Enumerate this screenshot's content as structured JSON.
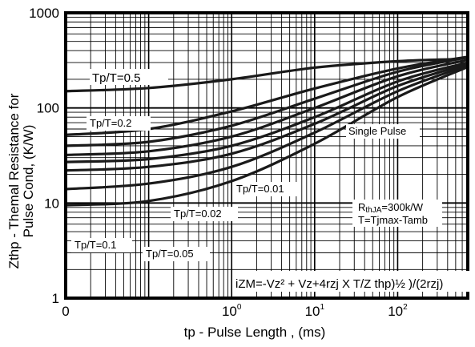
{
  "chart_data": {
    "type": "line",
    "xscale": "log",
    "yscale": "log",
    "xlim": [
      0.01,
      700
    ],
    "ylim": [
      1,
      1000
    ],
    "xlabel": "tp - Pulse Length , (ms)",
    "ylabel_line1": "Zthp - Themal Resistance for",
    "ylabel_line2": "Pulse Cond,  (K/W)",
    "x_ticks": [
      {
        "value": 0.01,
        "label": "0",
        "exp": ""
      },
      {
        "value": 1,
        "label": "10",
        "exp": "0"
      },
      {
        "value": 10,
        "label": "10",
        "exp": "1"
      },
      {
        "value": 100,
        "label": "10",
        "exp": "2"
      }
    ],
    "y_ticks": [
      {
        "value": 1,
        "label": "1"
      },
      {
        "value": 10,
        "label": "10"
      },
      {
        "value": 100,
        "label": "100"
      },
      {
        "value": 1000,
        "label": "1000"
      }
    ],
    "series": [
      {
        "name": "Tp/T=0.5",
        "x": [
          0.01,
          0.1,
          1,
          10,
          100,
          500
        ],
        "y": [
          150,
          162,
          200,
          265,
          310,
          325
        ]
      },
      {
        "name": "Tp/T=0.2",
        "x": [
          0.01,
          0.1,
          1,
          10,
          100,
          700
        ],
        "y": [
          52,
          60,
          92,
          160,
          260,
          345
        ]
      },
      {
        "name": "Tp/T=0.1",
        "x": [
          0.01,
          0.1,
          1,
          10,
          100,
          700
        ],
        "y": [
          40,
          44,
          65,
          125,
          240,
          340
        ]
      },
      {
        "name": "Tp/T=0.05",
        "x": [
          0.01,
          0.1,
          1,
          10,
          100,
          700
        ],
        "y": [
          32,
          35,
          50,
          100,
          215,
          320
        ]
      },
      {
        "name": "Tp/T=0.02",
        "x": [
          0.01,
          0.1,
          1,
          10,
          100,
          700
        ],
        "y": [
          27,
          29,
          40,
          80,
          190,
          300
        ]
      },
      {
        "name": "Tp/T=0.01",
        "x": [
          0.01,
          0.1,
          1,
          10,
          100,
          700
        ],
        "y": [
          22,
          24,
          33,
          68,
          170,
          290
        ]
      },
      {
        "name": "Single Pulse",
        "x": [
          0.01,
          0.1,
          1,
          10,
          100,
          700
        ],
        "y": [
          14,
          16,
          24,
          55,
          150,
          280
        ]
      },
      {
        "name": "",
        "x": [
          0.01,
          0.1,
          1,
          10,
          100,
          700
        ],
        "y": [
          9.5,
          10.5,
          17,
          42,
          130,
          270
        ]
      }
    ],
    "annotations": {
      "tp05": "Tp/T=0.5",
      "tp02": "Tp/T=0.2",
      "tp001": "Tp/T=0.01",
      "tp002": "Tp/T=0.02",
      "tp01": "Tp/T=0.1",
      "tp005": "Tp/T=0.05",
      "single_pulse": "Single Pulse",
      "rthja": "R",
      "rthja_sub": "thJA",
      "rthja_value": "=300k/W",
      "tj": "T=Tjmax-Tamb",
      "formula": "iZM=-Vz² + Vz+4rzj X T/Z thp)½ )/(2rzj)"
    },
    "grid": true,
    "colors": {
      "line": "#1a1a1a",
      "grid": "#000000",
      "background": "#ffffff"
    }
  }
}
